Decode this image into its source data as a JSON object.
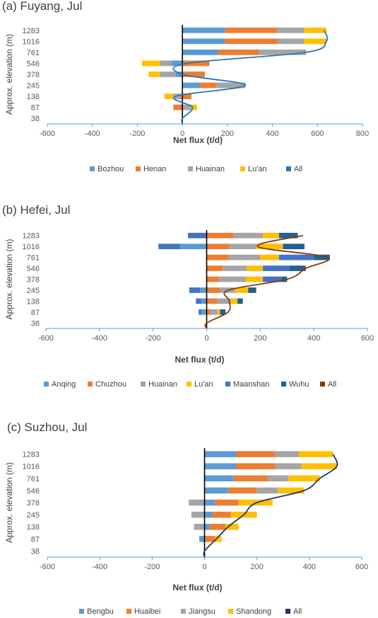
{
  "chart_data": [
    {
      "type": "bar",
      "title": "(a) Fuyang, Jul",
      "xlabel": "Net flux (t/d)",
      "ylabel": "Approx. elevation (m)",
      "categories": [
        "38",
        "87",
        "138",
        "245",
        "378",
        "546",
        "761",
        "1016",
        "1283"
      ],
      "xlim": [
        -600,
        800
      ],
      "xticks": [
        -600,
        -400,
        -200,
        0,
        200,
        400,
        600,
        800
      ],
      "stacked": true,
      "series": [
        {
          "name": "Bozhou",
          "color": "#5b9bd5",
          "values": [
            0,
            0,
            0,
            80,
            -30,
            -50,
            160,
            190,
            190
          ]
        },
        {
          "name": "Henan",
          "color": "#ed7d31",
          "values": [
            0,
            -40,
            40,
            70,
            100,
            120,
            180,
            230,
            230
          ]
        },
        {
          "name": "Huainan",
          "color": "#a5a5a5",
          "values": [
            0,
            40,
            -40,
            130,
            -70,
            -50,
            210,
            120,
            120
          ]
        },
        {
          "name": "Lu'an",
          "color": "#ffc000",
          "values": [
            0,
            25,
            -40,
            0,
            -50,
            -80,
            0,
            100,
            100
          ]
        }
      ],
      "all_line": {
        "name": "All",
        "color": "#2e75b6",
        "values": [
          0,
          45,
          -30,
          280,
          0,
          20,
          550,
          640,
          630
        ]
      },
      "legend_position": "bottom"
    },
    {
      "type": "bar",
      "title": "(b) Hefei, Jul",
      "xlabel": "Net flux (t/d)",
      "ylabel": "Approx. elevation (m)",
      "categories": [
        "38",
        "87",
        "138",
        "245",
        "378",
        "546",
        "761",
        "1016",
        "1283"
      ],
      "xlim": [
        -600,
        600
      ],
      "xticks": [
        -600,
        -400,
        -200,
        0,
        200,
        400,
        600
      ],
      "stacked": true,
      "series": [
        {
          "name": "Anqing",
          "color": "#5b9bd5",
          "values": [
            0,
            -20,
            -20,
            -25,
            0,
            0,
            0,
            -100,
            0
          ]
        },
        {
          "name": "Chuzhou",
          "color": "#ed7d31",
          "values": [
            0,
            15,
            40,
            50,
            45,
            60,
            80,
            85,
            100
          ]
        },
        {
          "name": "Huainan",
          "color": "#a5a5a5",
          "values": [
            0,
            25,
            50,
            55,
            100,
            90,
            120,
            100,
            110
          ]
        },
        {
          "name": "Lu'an",
          "color": "#ffc000",
          "values": [
            0,
            10,
            25,
            50,
            65,
            60,
            70,
            100,
            60
          ]
        },
        {
          "name": "Maanshan",
          "color": "#4472c4",
          "values": [
            0,
            -10,
            -20,
            -40,
            70,
            100,
            130,
            -80,
            -70
          ]
        },
        {
          "name": "Wuhu",
          "color": "#255e91",
          "values": [
            0,
            20,
            20,
            30,
            20,
            60,
            60,
            80,
            70
          ]
        }
      ],
      "all_line": {
        "name": "All",
        "color": "#843c0c",
        "values": [
          0,
          80,
          85,
          80,
          300,
          370,
          450,
          190,
          360
        ]
      },
      "legend_position": "bottom"
    },
    {
      "type": "bar",
      "title": "(c) Suzhou, Jul",
      "xlabel": "Net flux (t/d)",
      "ylabel": "Approx. elevation (m)",
      "categories": [
        "38",
        "87",
        "138",
        "245",
        "378",
        "546",
        "761",
        "1016",
        "1283"
      ],
      "xlim": [
        -600,
        600
      ],
      "xticks": [
        -600,
        -400,
        -200,
        0,
        200,
        400,
        600
      ],
      "stacked": true,
      "series": [
        {
          "name": "Bengbu",
          "color": "#5b9bd5",
          "values": [
            0,
            -20,
            20,
            30,
            40,
            90,
            110,
            120,
            120
          ]
        },
        {
          "name": "Huaibei",
          "color": "#ed7d31",
          "values": [
            0,
            40,
            60,
            70,
            90,
            110,
            130,
            150,
            150
          ]
        },
        {
          "name": "Jiangsu",
          "color": "#a5a5a5",
          "values": [
            0,
            0,
            -40,
            -50,
            -60,
            80,
            80,
            100,
            90
          ]
        },
        {
          "name": "Shandong",
          "color": "#ffc000",
          "values": [
            0,
            25,
            50,
            100,
            130,
            100,
            120,
            135,
            130
          ]
        }
      ],
      "all_line": {
        "name": "All",
        "color": "#1f3864",
        "values": [
          0,
          45,
          90,
          150,
          200,
          380,
          440,
          505,
          490
        ]
      },
      "legend_position": "bottom"
    }
  ]
}
